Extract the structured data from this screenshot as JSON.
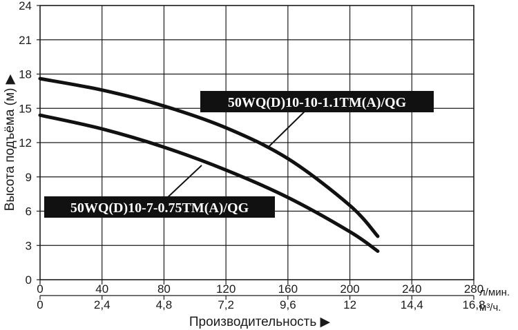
{
  "chart_data": {
    "type": "line",
    "y_axis": {
      "label": "Высота подъёма (м) ▶",
      "ticks": [
        "0",
        "3",
        "6",
        "9",
        "12",
        "15",
        "18",
        "21",
        "24"
      ],
      "ylim": [
        0,
        24
      ]
    },
    "x_axis_primary": {
      "ticks": [
        "0",
        "40",
        "80",
        "120",
        "160",
        "200",
        "240",
        "280"
      ],
      "unit": "л/мин.",
      "xlim": [
        0,
        280
      ]
    },
    "x_axis_secondary": {
      "ticks": [
        "0",
        "2,4",
        "4,8",
        "7,2",
        "9,6",
        "12",
        "14,4",
        "16,8"
      ],
      "unit": "м³/ч."
    },
    "xlabel": "Производительность ▶",
    "grid": true,
    "series": [
      {
        "name": "50WQ(D)10-10-1.1TM(A)/QG",
        "x": [
          0,
          40,
          80,
          120,
          160,
          200,
          218
        ],
        "y": [
          17.6,
          16.6,
          15.2,
          13.3,
          10.6,
          6.5,
          3.8
        ]
      },
      {
        "name": "50WQ(D)10-7-0.75TM(A)/QG",
        "x": [
          0,
          40,
          80,
          120,
          160,
          200,
          218
        ],
        "y": [
          14.4,
          13.2,
          11.6,
          9.6,
          7.2,
          4.2,
          2.5
        ]
      }
    ]
  }
}
